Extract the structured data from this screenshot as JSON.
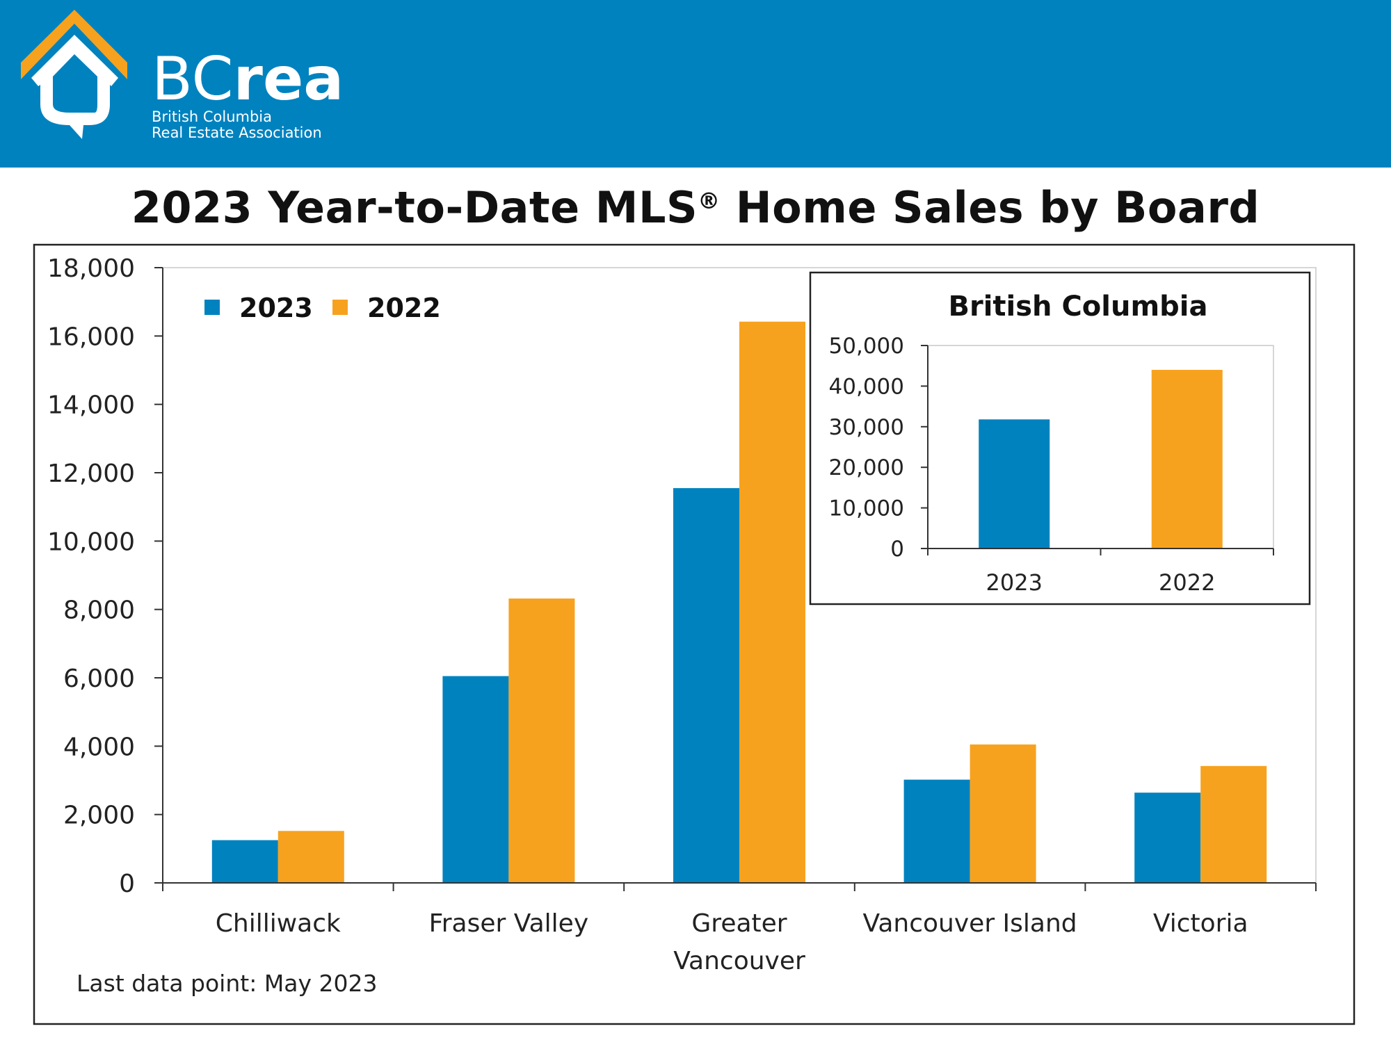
{
  "brand": {
    "name": "BCrea",
    "name_light": "BC",
    "name_bold": "rea",
    "tagline_line1": "British Columbia",
    "tagline_line2": "Real Estate Association"
  },
  "colors": {
    "header_bg": "#0082BF",
    "series_2023": "#0082BF",
    "series_2022": "#F7A21E"
  },
  "chart_data": [
    {
      "type": "bar",
      "title": "2023 Year-to-Date MLS® Home Sales by Board",
      "title_main": "2023 Year-to-Date MLS",
      "title_reg": "®",
      "title_rest": " Home Sales by Board",
      "categories": [
        "Chilliwack",
        "Fraser Valley",
        "Greater Vancouver",
        "Vancouver Island",
        "Victoria"
      ],
      "category_labels": [
        [
          "Chilliwack"
        ],
        [
          "Fraser Valley"
        ],
        [
          "Greater",
          "Vancouver"
        ],
        [
          "Vancouver Island"
        ],
        [
          "Victoria"
        ]
      ],
      "series": [
        {
          "name": "2023",
          "values": [
            1250,
            6050,
            11550,
            3020,
            2640
          ]
        },
        {
          "name": "2022",
          "values": [
            1520,
            8320,
            16420,
            4050,
            3420
          ]
        }
      ],
      "ylim": [
        0,
        18000
      ],
      "yticks": [
        "0",
        "2,000",
        "4,000",
        "6,000",
        "8,000",
        "10,000",
        "12,000",
        "14,000",
        "16,000",
        "18,000"
      ],
      "legend": "top-left",
      "grid": false
    },
    {
      "type": "bar",
      "title": "British Columbia",
      "categories": [
        "2023",
        "2022"
      ],
      "values": [
        31800,
        44000
      ],
      "ylim": [
        0,
        50000
      ],
      "yticks": [
        "0",
        "10,000",
        "20,000",
        "30,000",
        "40,000",
        "50,000"
      ],
      "grid": false
    }
  ],
  "footnote": "Last data point: May 2023"
}
